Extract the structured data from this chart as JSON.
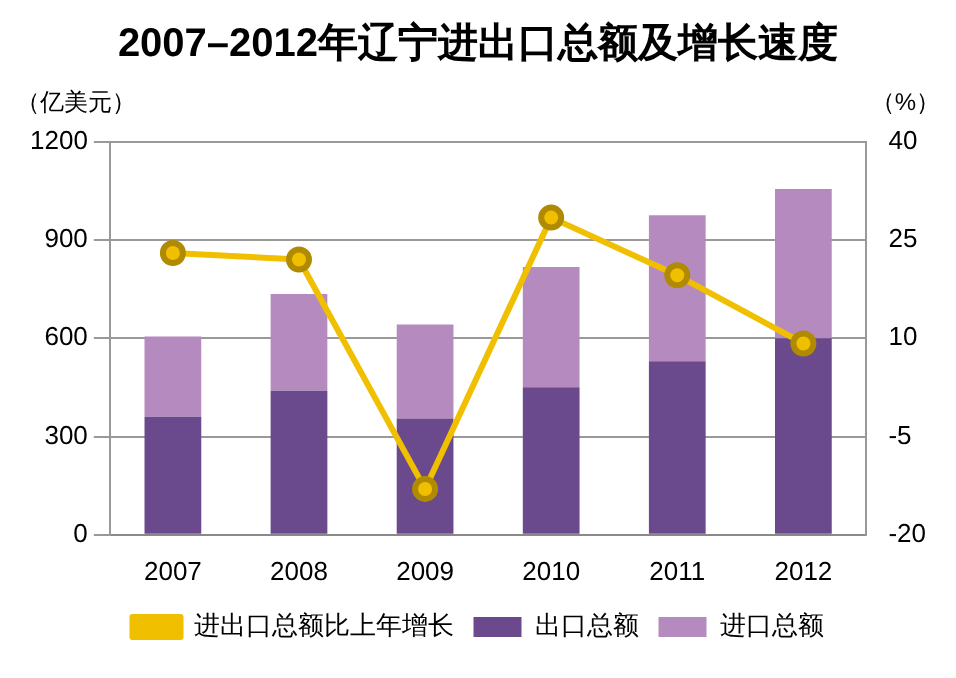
{
  "chart_data": {
    "type": "bar",
    "title": "2007–2012年辽宁进出口总额及增长速度",
    "ylabel": "（亿美元）",
    "y2label": "（%）",
    "categories": [
      "2007",
      "2008",
      "2009",
      "2010",
      "2011",
      "2012"
    ],
    "stacked": true,
    "series": [
      {
        "name": "出口总额",
        "color": "#6a4a8c",
        "values": [
          360,
          440,
          355,
          450,
          530,
          600
        ]
      },
      {
        "name": "进口总额",
        "color": "#b58bbf",
        "values": [
          245,
          295,
          287,
          367,
          445,
          455
        ]
      },
      {
        "name": "进出口总额比上年增长",
        "type": "line",
        "axis": "y2",
        "color": "#f0c000",
        "marker": "circle",
        "values": [
          23,
          22,
          -13,
          28.4,
          19.6,
          9.2
        ]
      }
    ],
    "ylim": [
      0,
      1200
    ],
    "yticks": [
      0,
      300,
      600,
      900,
      1200
    ],
    "y2lim": [
      -20,
      40
    ],
    "y2ticks": [
      -20,
      -5,
      10,
      25,
      40
    ],
    "grid": "y",
    "legend": "bottom"
  }
}
